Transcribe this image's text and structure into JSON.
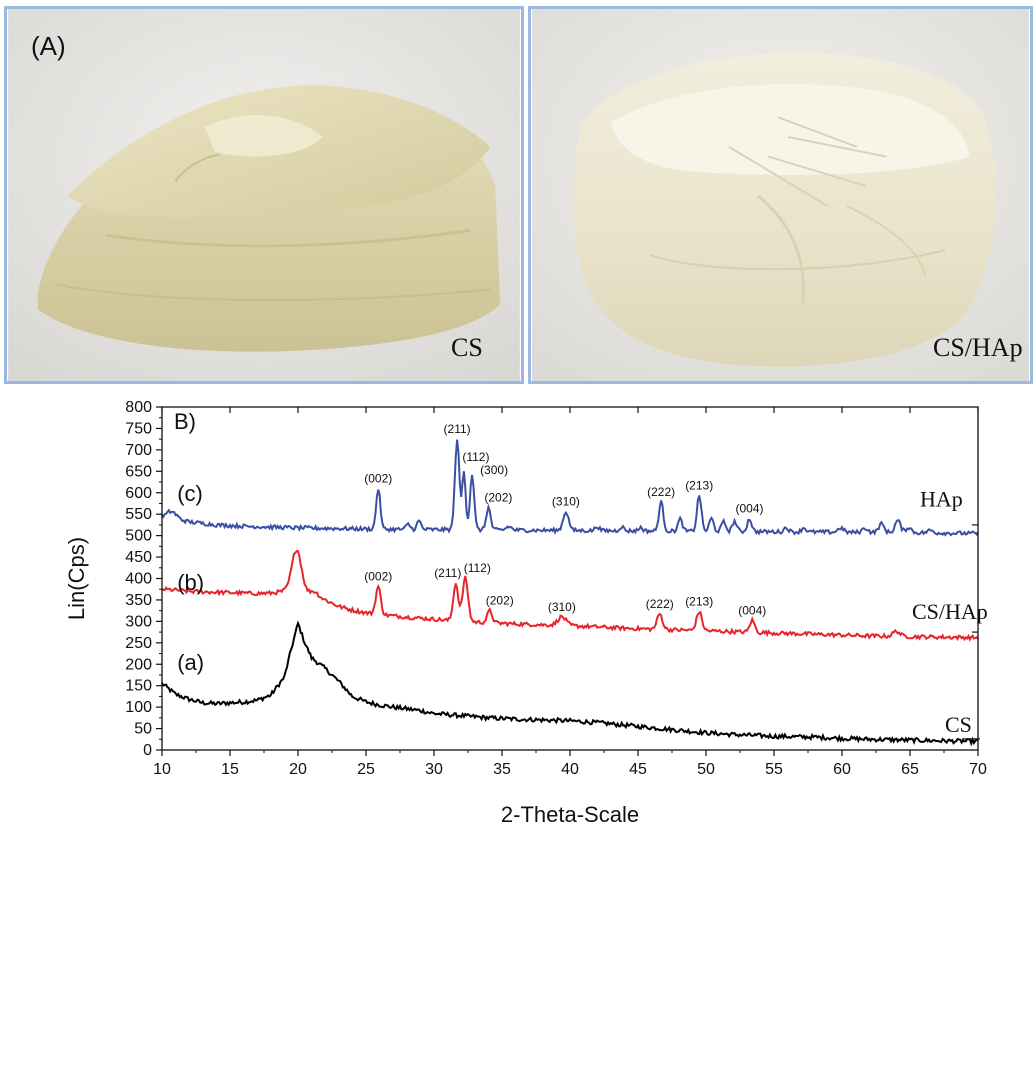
{
  "photos": {
    "panel_label": "(A)",
    "left_label": "CS",
    "right_label": "CS/HAp"
  },
  "chart_data": {
    "type": "line",
    "panel_label": "B)",
    "xlabel": "2-Theta-Scale",
    "ylabel": "Lin(Cps)",
    "xlim": [
      10,
      70
    ],
    "ylim": [
      0,
      800
    ],
    "xticks": [
      10,
      15,
      20,
      25,
      30,
      35,
      40,
      45,
      50,
      55,
      60,
      65,
      70
    ],
    "yticks": [
      0,
      50,
      100,
      150,
      200,
      250,
      300,
      350,
      400,
      450,
      500,
      550,
      600,
      650,
      700,
      750,
      800
    ],
    "grid": false,
    "series": [
      {
        "name": "CS",
        "trace_label": "(a)",
        "color": "#000000",
        "baseline": [
          [
            10,
            155
          ],
          [
            11,
            130
          ],
          [
            12,
            118
          ],
          [
            13,
            110
          ],
          [
            14,
            108
          ],
          [
            15,
            110
          ],
          [
            16,
            112
          ],
          [
            17,
            116
          ],
          [
            18,
            128
          ],
          [
            19,
            170
          ],
          [
            19.5,
            235
          ],
          [
            20,
            295
          ],
          [
            20.5,
            250
          ],
          [
            21,
            215
          ],
          [
            22,
            190
          ],
          [
            23,
            160
          ],
          [
            24,
            125
          ],
          [
            25,
            112
          ],
          [
            26,
            105
          ],
          [
            27,
            100
          ],
          [
            28,
            96
          ],
          [
            29,
            92
          ],
          [
            30,
            85
          ],
          [
            32,
            80
          ],
          [
            34,
            75
          ],
          [
            36,
            72
          ],
          [
            38,
            70
          ],
          [
            40,
            68
          ],
          [
            42,
            64
          ],
          [
            44,
            58
          ],
          [
            46,
            52
          ],
          [
            48,
            46
          ],
          [
            50,
            40
          ],
          [
            52,
            36
          ],
          [
            55,
            32
          ],
          [
            58,
            30
          ],
          [
            60,
            27
          ],
          [
            62,
            25
          ],
          [
            65,
            23
          ],
          [
            68,
            21
          ],
          [
            70,
            20
          ]
        ],
        "peaks": []
      },
      {
        "name": "CS/HAp",
        "trace_label": "(b)",
        "color": "#e8242a",
        "baseline": [
          [
            10,
            375
          ],
          [
            11,
            373
          ],
          [
            12,
            370
          ],
          [
            14,
            368
          ],
          [
            16,
            366
          ],
          [
            17,
            365
          ],
          [
            18,
            366
          ],
          [
            19,
            370
          ],
          [
            20,
            368
          ],
          [
            21,
            362
          ],
          [
            22,
            350
          ],
          [
            23,
            335
          ],
          [
            24,
            326
          ],
          [
            25,
            320
          ],
          [
            26,
            316
          ],
          [
            28,
            310
          ],
          [
            30,
            305
          ],
          [
            32,
            300
          ],
          [
            34,
            297
          ],
          [
            36,
            294
          ],
          [
            38,
            292
          ],
          [
            40,
            290
          ],
          [
            42,
            287
          ],
          [
            44,
            284
          ],
          [
            46,
            282
          ],
          [
            48,
            280
          ],
          [
            50,
            278
          ],
          [
            52,
            276
          ],
          [
            54,
            274
          ],
          [
            56,
            272
          ],
          [
            58,
            270
          ],
          [
            60,
            268
          ],
          [
            62,
            266
          ],
          [
            64,
            265
          ],
          [
            66,
            264
          ],
          [
            68,
            263
          ],
          [
            70,
            262
          ]
        ],
        "peaks": [
          {
            "pos": 19.9,
            "height": 100,
            "width": 0.35
          },
          {
            "pos": 21.2,
            "height": 10,
            "width": 0.3
          },
          {
            "pos": 25.9,
            "height": 65,
            "width": 0.18,
            "label": "(002)"
          },
          {
            "pos": 31.6,
            "height": 88,
            "width": 0.18,
            "label": "(211)"
          },
          {
            "pos": 32.3,
            "height": 102,
            "width": 0.2,
            "label": "(112)"
          },
          {
            "pos": 34.1,
            "height": 28,
            "width": 0.18,
            "label": "(202)"
          },
          {
            "pos": 39.4,
            "height": 20,
            "width": 0.3,
            "label": "(310)"
          },
          {
            "pos": 46.6,
            "height": 36,
            "width": 0.2,
            "label": "(222)"
          },
          {
            "pos": 49.5,
            "height": 44,
            "width": 0.2,
            "label": "(213)"
          },
          {
            "pos": 53.4,
            "height": 28,
            "width": 0.18,
            "label": "(004)"
          },
          {
            "pos": 64.0,
            "height": 12,
            "width": 0.25
          }
        ]
      },
      {
        "name": "HAp",
        "trace_label": "(c)",
        "color": "#3a4fa3",
        "baseline": [
          [
            10,
            545
          ],
          [
            10.5,
            548
          ],
          [
            11,
            540
          ],
          [
            12,
            532
          ],
          [
            14,
            525
          ],
          [
            16,
            522
          ],
          [
            18,
            520
          ],
          [
            20,
            518
          ],
          [
            22,
            517
          ],
          [
            24,
            516
          ],
          [
            26,
            515
          ],
          [
            30,
            514
          ],
          [
            35,
            513
          ],
          [
            40,
            512
          ],
          [
            45,
            511
          ],
          [
            50,
            510
          ],
          [
            55,
            509
          ],
          [
            60,
            508
          ],
          [
            65,
            507
          ],
          [
            70,
            505
          ]
        ],
        "peaks": [
          {
            "pos": 10.8,
            "height": 12,
            "width": 0.3
          },
          {
            "pos": 25.9,
            "height": 95,
            "width": 0.15,
            "label": "(002)"
          },
          {
            "pos": 28.1,
            "height": 12,
            "width": 0.15
          },
          {
            "pos": 28.9,
            "height": 20,
            "width": 0.15
          },
          {
            "pos": 31.7,
            "height": 212,
            "width": 0.16,
            "label": "(211)"
          },
          {
            "pos": 32.2,
            "height": 135,
            "width": 0.13,
            "label": "(112)"
          },
          {
            "pos": 32.8,
            "height": 130,
            "width": 0.15,
            "label": "(300)"
          },
          {
            "pos": 34.0,
            "height": 52,
            "width": 0.16,
            "label": "(202)"
          },
          {
            "pos": 35.5,
            "height": 8,
            "width": 0.2
          },
          {
            "pos": 39.7,
            "height": 44,
            "width": 0.2,
            "label": "(310)"
          },
          {
            "pos": 42.0,
            "height": 10,
            "width": 0.15
          },
          {
            "pos": 43.8,
            "height": 10,
            "width": 0.15
          },
          {
            "pos": 45.2,
            "height": 8,
            "width": 0.15
          },
          {
            "pos": 46.7,
            "height": 68,
            "width": 0.16,
            "label": "(222)"
          },
          {
            "pos": 48.1,
            "height": 28,
            "width": 0.16
          },
          {
            "pos": 49.5,
            "height": 84,
            "width": 0.16,
            "label": "(213)"
          },
          {
            "pos": 50.4,
            "height": 30,
            "width": 0.16
          },
          {
            "pos": 51.3,
            "height": 22,
            "width": 0.16
          },
          {
            "pos": 52.1,
            "height": 24,
            "width": 0.16
          },
          {
            "pos": 53.2,
            "height": 30,
            "width": 0.16,
            "label": "(004)"
          },
          {
            "pos": 55.9,
            "height": 10,
            "width": 0.16
          },
          {
            "pos": 57.2,
            "height": 10,
            "width": 0.16
          },
          {
            "pos": 59.9,
            "height": 10,
            "width": 0.2
          },
          {
            "pos": 61.7,
            "height": 10,
            "width": 0.2
          },
          {
            "pos": 62.9,
            "height": 20,
            "width": 0.2
          },
          {
            "pos": 64.1,
            "height": 28,
            "width": 0.2
          },
          {
            "pos": 64.9,
            "height": 12,
            "width": 0.2
          },
          {
            "pos": 66.5,
            "height": 6,
            "width": 0.2
          }
        ]
      }
    ]
  }
}
